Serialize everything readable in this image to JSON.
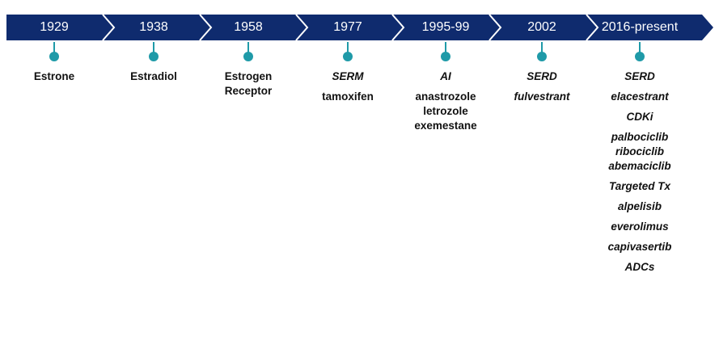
{
  "colors": {
    "banner": "#0f2b6e",
    "accent": "#1f9aa8"
  },
  "timeline": [
    {
      "year": "1929",
      "items": [
        {
          "text": "Estrone",
          "italic": false
        }
      ]
    },
    {
      "year": "1938",
      "items": [
        {
          "text": "Estradiol",
          "italic": false
        }
      ]
    },
    {
      "year": "1958",
      "items": [
        {
          "text": "Estrogen",
          "italic": false
        },
        {
          "text": "Receptor",
          "italic": false
        }
      ]
    },
    {
      "year": "1977",
      "items": [
        {
          "text": "SERM",
          "italic": true
        },
        {
          "text": "tamoxifen",
          "italic": false,
          "gap": true
        }
      ]
    },
    {
      "year": "1995-99",
      "items": [
        {
          "text": "AI",
          "italic": true
        },
        {
          "text": "anastrozole",
          "italic": false,
          "gap": true
        },
        {
          "text": "letrozole",
          "italic": false
        },
        {
          "text": "exemestane",
          "italic": false
        }
      ]
    },
    {
      "year": "2002",
      "items": [
        {
          "text": "SERD",
          "italic": true
        },
        {
          "text": "fulvestrant",
          "italic": true,
          "gap": true
        }
      ]
    },
    {
      "year": "2016-present",
      "items": [
        {
          "text": "SERD",
          "italic": true
        },
        {
          "text": "elacestrant",
          "italic": true,
          "gap": true
        },
        {
          "text": "CDKi",
          "italic": true,
          "gap": true
        },
        {
          "text": "palbociclib",
          "italic": true,
          "gap": true
        },
        {
          "text": "ribociclib",
          "italic": true
        },
        {
          "text": "abemaciclib",
          "italic": true
        },
        {
          "text": "Targeted Tx",
          "italic": true,
          "gap": true
        },
        {
          "text": "alpelisib",
          "italic": true,
          "gap": true
        },
        {
          "text": "everolimus",
          "italic": true,
          "gap": true
        },
        {
          "text": "capivasertib",
          "italic": true,
          "gap": true
        },
        {
          "text": "ADCs",
          "italic": true,
          "gap": true
        }
      ]
    }
  ]
}
